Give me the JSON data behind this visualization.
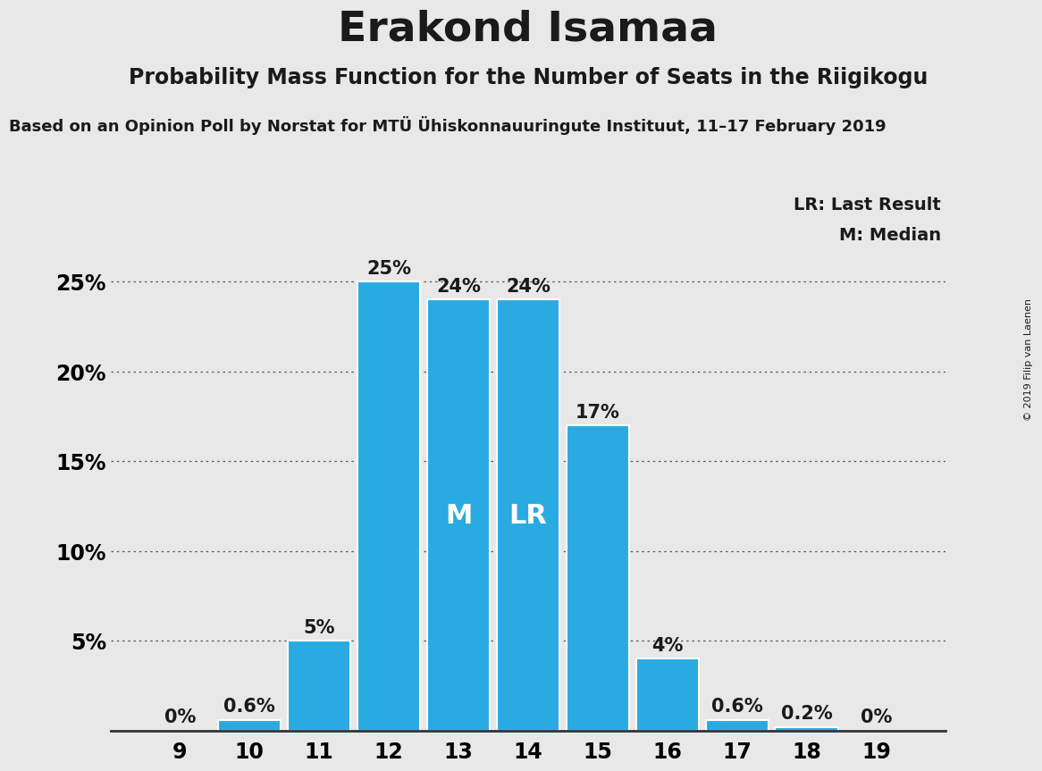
{
  "title": "Erakond Isamaa",
  "subtitle": "Probability Mass Function for the Number of Seats in the Riigikogu",
  "source_line": "Based on an Opinion Poll by Norstat for MTÜ Ühiskonnauuringute Instituut, 11–17 February 2019",
  "copyright": "© 2019 Filip van Laenen",
  "categories": [
    9,
    10,
    11,
    12,
    13,
    14,
    15,
    16,
    17,
    18,
    19
  ],
  "values": [
    0,
    0.6,
    5,
    25,
    24,
    24,
    17,
    4,
    0.6,
    0.2,
    0
  ],
  "bar_color": "#29ABE2",
  "bar_edge_color": "#FFFFFF",
  "background_color": "#E8E8E8",
  "label_color": "#1A1A1A",
  "median_seat": 13,
  "last_result_seat": 14,
  "yticks": [
    5,
    10,
    15,
    20,
    25
  ],
  "ylim": [
    0,
    28.5
  ],
  "grid_color": "#555555",
  "lr_label": "LR: Last Result",
  "m_label": "M: Median",
  "bar_label_fontsize": 15,
  "axis_label_fontsize": 17,
  "title_fontsize": 34,
  "subtitle_fontsize": 17,
  "source_fontsize": 13
}
